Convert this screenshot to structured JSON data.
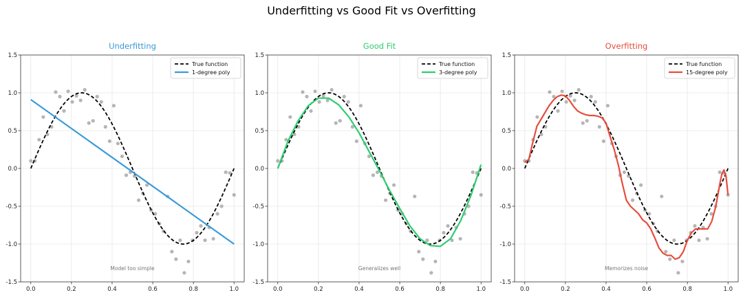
{
  "figure": {
    "suptitle": "Underfitting vs Good Fit vs Overfitting"
  },
  "chart_data": [
    {
      "type": "line",
      "title": "Underfitting",
      "title_color": "#3a9ad9",
      "xlim": [
        0.0,
        1.0
      ],
      "ylim": [
        -1.5,
        1.5
      ],
      "xticks": [
        "0.0",
        "0.2",
        "0.4",
        "0.6",
        "0.8",
        "1.0"
      ],
      "yticks": [
        "-1.5",
        "-1.0",
        "-0.5",
        "0.0",
        "0.5",
        "1.0",
        "1.5"
      ],
      "grid": true,
      "legend_position": "top-right",
      "annotation": "Model too simple",
      "series": [
        {
          "name": "True function",
          "color": "#000000",
          "style": "dashed"
        },
        {
          "name": "1-degree poly",
          "color": "#3a9ad9",
          "style": "solid",
          "x": [
            0.0,
            1.0
          ],
          "y": [
            0.91,
            -1.0
          ]
        }
      ]
    },
    {
      "type": "line",
      "title": "Good Fit",
      "title_color": "#2ecc71",
      "xlim": [
        0.0,
        1.0
      ],
      "ylim": [
        -1.5,
        1.5
      ],
      "xticks": [
        "0.0",
        "0.2",
        "0.4",
        "0.6",
        "0.8",
        "1.0"
      ],
      "yticks": [
        "-1.5",
        "-1.0",
        "-0.5",
        "0.0",
        "0.5",
        "1.0",
        "1.5"
      ],
      "grid": true,
      "legend_position": "top-right",
      "annotation": "Generalizes well",
      "series": [
        {
          "name": "True function",
          "color": "#000000",
          "style": "dashed"
        },
        {
          "name": "3-degree poly",
          "color": "#2ecc71",
          "style": "solid",
          "x": [
            0.0,
            0.05,
            0.1,
            0.15,
            0.2,
            0.25,
            0.3,
            0.35,
            0.4,
            0.45,
            0.5,
            0.55,
            0.6,
            0.65,
            0.7,
            0.75,
            0.8,
            0.85,
            0.9,
            0.95,
            1.0
          ],
          "y": [
            0.0,
            0.36,
            0.63,
            0.83,
            0.93,
            0.93,
            0.84,
            0.68,
            0.47,
            0.22,
            -0.03,
            -0.29,
            -0.53,
            -0.76,
            -0.93,
            -1.02,
            -1.03,
            -0.93,
            -0.69,
            -0.36,
            0.05
          ]
        }
      ]
    },
    {
      "type": "line",
      "title": "Overfitting",
      "title_color": "#e74c3c",
      "xlim": [
        0.0,
        1.0
      ],
      "ylim": [
        -1.5,
        1.5
      ],
      "xticks": [
        "0.0",
        "0.2",
        "0.4",
        "0.6",
        "0.8",
        "1.0"
      ],
      "yticks": [
        "-1.5",
        "-1.0",
        "-0.5",
        "0.0",
        "0.5",
        "1.0",
        "1.5"
      ],
      "grid": true,
      "legend_position": "top-right",
      "annotation": "Memorizes noise",
      "series": [
        {
          "name": "True function",
          "color": "#000000",
          "style": "dashed"
        },
        {
          "name": "15-degree poly",
          "color": "#e74c3c",
          "style": "solid",
          "x": [
            0.0,
            0.02,
            0.04,
            0.06,
            0.08,
            0.1,
            0.12,
            0.14,
            0.16,
            0.18,
            0.2,
            0.22,
            0.24,
            0.26,
            0.28,
            0.3,
            0.32,
            0.34,
            0.36,
            0.38,
            0.4,
            0.42,
            0.44,
            0.46,
            0.48,
            0.5,
            0.52,
            0.54,
            0.56,
            0.58,
            0.6,
            0.62,
            0.64,
            0.66,
            0.68,
            0.7,
            0.72,
            0.74,
            0.76,
            0.78,
            0.8,
            0.82,
            0.84,
            0.86,
            0.88,
            0.9,
            0.92,
            0.94,
            0.96,
            0.97,
            0.98,
            0.99,
            1.0
          ],
          "y": [
            0.08,
            0.12,
            0.35,
            0.56,
            0.65,
            0.74,
            0.83,
            0.9,
            0.95,
            0.97,
            0.96,
            0.9,
            0.82,
            0.76,
            0.73,
            0.71,
            0.7,
            0.7,
            0.69,
            0.67,
            0.6,
            0.42,
            0.25,
            0.05,
            -0.2,
            -0.42,
            -0.5,
            -0.55,
            -0.6,
            -0.68,
            -0.72,
            -0.8,
            -0.92,
            -1.05,
            -1.12,
            -1.15,
            -1.15,
            -1.2,
            -1.18,
            -1.1,
            -0.95,
            -0.85,
            -0.8,
            -0.8,
            -0.8,
            -0.8,
            -0.7,
            -0.5,
            -0.2,
            -0.07,
            -0.02,
            -0.1,
            -0.35
          ]
        }
      ]
    }
  ],
  "shared_data": {
    "true_function": "sin(2*pi*x)",
    "points_x": [
      0.0,
      0.0204,
      0.0408,
      0.0612,
      0.0816,
      0.102,
      0.1224,
      0.1429,
      0.1633,
      0.1837,
      0.2041,
      0.2245,
      0.2449,
      0.2653,
      0.2857,
      0.3061,
      0.3265,
      0.3469,
      0.3673,
      0.3878,
      0.4082,
      0.4286,
      0.449,
      0.4694,
      0.4898,
      0.5102,
      0.5306,
      0.551,
      0.5714,
      0.5918,
      0.6122,
      0.6327,
      0.6531,
      0.6735,
      0.6939,
      0.7143,
      0.7347,
      0.7551,
      0.7755,
      0.7959,
      0.8163,
      0.8367,
      0.8571,
      0.8776,
      0.898,
      0.9184,
      0.9388,
      0.9592,
      0.9796,
      1.0
    ],
    "points_y": [
      0.1,
      0.1,
      0.38,
      0.68,
      0.45,
      0.55,
      1.01,
      0.95,
      0.76,
      1.02,
      0.88,
      0.96,
      0.9,
      1.04,
      0.6,
      0.63,
      0.95,
      0.88,
      0.55,
      0.36,
      0.83,
      0.33,
      0.16,
      -0.09,
      -0.05,
      -0.1,
      -0.42,
      -0.33,
      -0.22,
      -0.55,
      -0.6,
      -0.73,
      -0.83,
      -0.37,
      -1.1,
      -1.2,
      -0.95,
      -1.38,
      -1.23,
      -0.95,
      -0.85,
      -0.76,
      -0.95,
      -0.78,
      -0.93,
      -0.6,
      -0.5,
      -0.05,
      -0.06,
      -0.35
    ]
  }
}
